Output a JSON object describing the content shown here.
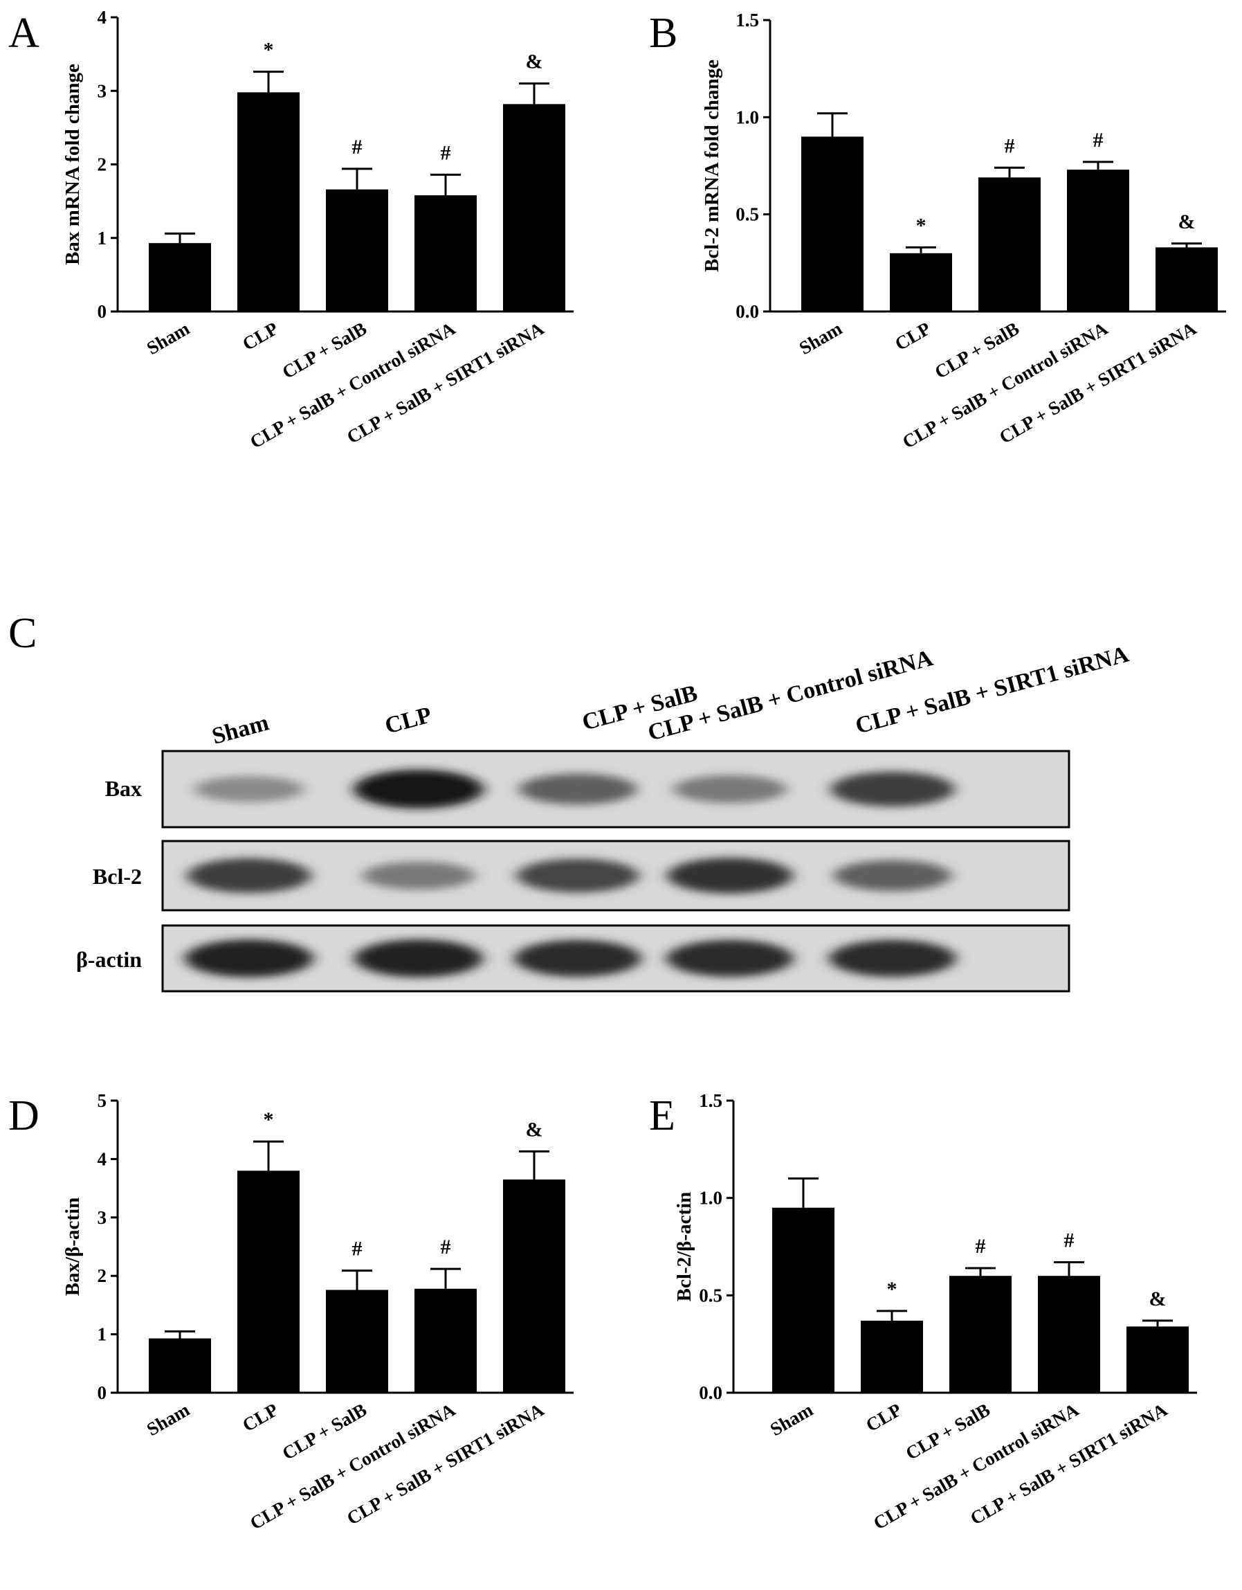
{
  "figure": {
    "blot_panel_letter": "C",
    "blot_lane_labels": [
      "Sham",
      "CLP",
      "CLP + SalB",
      "CLP + SalB + Control siRNA",
      "CLP + SalB + SIRT1 siRNA"
    ],
    "blot_row_labels": [
      "Bax",
      "Bcl-2",
      "β-actin"
    ],
    "blot_band_intensity": [
      [
        0.35,
        1.0,
        0.6,
        0.45,
        0.8
      ],
      [
        0.8,
        0.45,
        0.75,
        0.85,
        0.6
      ],
      [
        0.95,
        0.95,
        0.9,
        0.9,
        0.9
      ]
    ]
  },
  "chart_data": [
    {
      "panel": "A",
      "type": "bar",
      "categories": [
        "Sham",
        "CLP",
        "CLP + SalB",
        "CLP + SalB + Control siRNA",
        "CLP + SalB + SIRT1 siRNA"
      ],
      "values": [
        0.93,
        2.98,
        1.66,
        1.58,
        2.82
      ],
      "errors": [
        0.13,
        0.28,
        0.28,
        0.28,
        0.28
      ],
      "annotations": [
        "",
        "*",
        "#",
        "#",
        "&"
      ],
      "title": "",
      "xlabel": "",
      "ylabel": "Bax mRNA fold change",
      "ylim": [
        0,
        4
      ],
      "yticks": [
        "0",
        "1",
        "2",
        "3",
        "4"
      ],
      "ytick_values": [
        0,
        1,
        2,
        3,
        4
      ],
      "grid": false
    },
    {
      "panel": "B",
      "type": "bar",
      "categories": [
        "Sham",
        "CLP",
        "CLP + SalB",
        "CLP + SalB + Control siRNA",
        "CLP + SalB + SIRT1 siRNA"
      ],
      "values": [
        0.9,
        0.3,
        0.69,
        0.73,
        0.33
      ],
      "errors": [
        0.12,
        0.03,
        0.05,
        0.04,
        0.02
      ],
      "annotations": [
        "",
        "*",
        "#",
        "#",
        "&"
      ],
      "title": "",
      "xlabel": "",
      "ylabel": "Bcl-2 mRNA fold change",
      "ylim": [
        0,
        1.5
      ],
      "yticks": [
        "0.0",
        "0.5",
        "1.0",
        "1.5"
      ],
      "ytick_values": [
        0,
        0.5,
        1.0,
        1.5
      ],
      "grid": false
    },
    {
      "panel": "D",
      "type": "bar",
      "categories": [
        "Sham",
        "CLP",
        "CLP + SalB",
        "CLP + SalB + Control siRNA",
        "CLP + SalB + SIRT1 siRNA"
      ],
      "values": [
        0.93,
        3.8,
        1.76,
        1.78,
        3.65
      ],
      "errors": [
        0.12,
        0.5,
        0.33,
        0.34,
        0.48
      ],
      "annotations": [
        "",
        "*",
        "#",
        "#",
        "&"
      ],
      "title": "",
      "xlabel": "",
      "ylabel": "Bax/β-actin",
      "ylim": [
        0,
        5
      ],
      "yticks": [
        "0",
        "1",
        "2",
        "3",
        "4",
        "5"
      ],
      "ytick_values": [
        0,
        1,
        2,
        3,
        4,
        5
      ],
      "grid": false
    },
    {
      "panel": "E",
      "type": "bar",
      "categories": [
        "Sham",
        "CLP",
        "CLP + SalB",
        "CLP + SalB + Control siRNA",
        "CLP + SalB + SIRT1 siRNA"
      ],
      "values": [
        0.95,
        0.37,
        0.6,
        0.6,
        0.34
      ],
      "errors": [
        0.15,
        0.05,
        0.04,
        0.07,
        0.03
      ],
      "annotations": [
        "",
        "*",
        "#",
        "#",
        "&"
      ],
      "title": "",
      "xlabel": "",
      "ylabel": "Bcl-2/β-actin",
      "ylim": [
        0,
        1.5
      ],
      "yticks": [
        "0.0",
        "0.5",
        "1.0",
        "1.5"
      ],
      "ytick_values": [
        0,
        0.5,
        1.0,
        1.5
      ],
      "grid": false
    }
  ]
}
